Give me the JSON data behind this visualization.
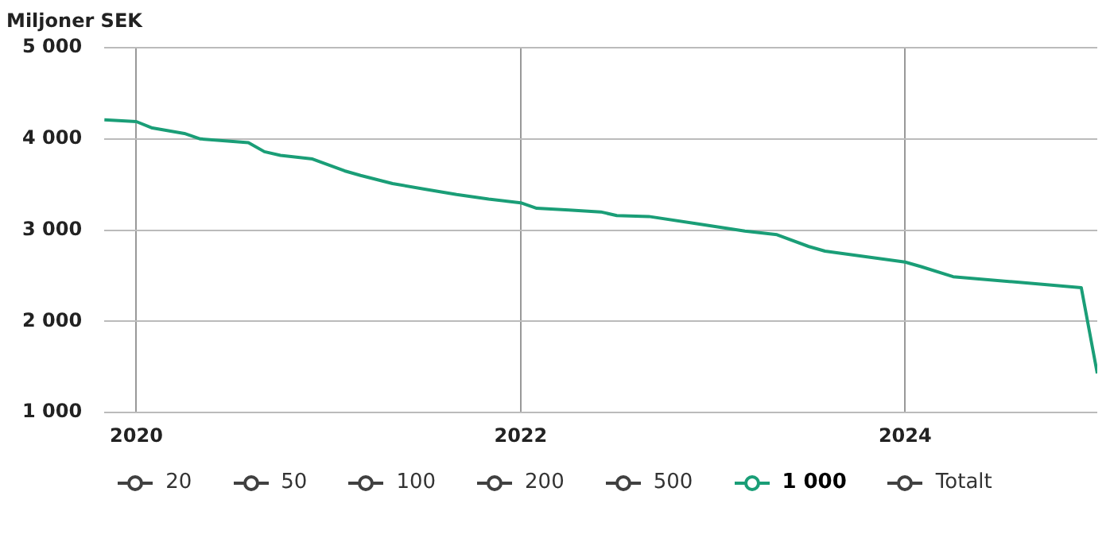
{
  "chart_data": {
    "type": "line",
    "ylabel": "Miljoner SEK",
    "x": [
      "2019-11",
      "2020-01",
      "2020-02",
      "2020-04",
      "2020-05",
      "2020-08",
      "2020-09",
      "2020-10",
      "2020-12",
      "2021-02",
      "2021-03",
      "2021-05",
      "2021-07",
      "2021-09",
      "2021-11",
      "2022-01",
      "2022-02",
      "2022-04",
      "2022-06",
      "2022-07",
      "2022-09",
      "2022-12",
      "2023-03",
      "2023-05",
      "2023-07",
      "2023-08",
      "2024-01",
      "2024-02",
      "2024-04",
      "2024-08",
      "2024-12",
      "2025-01"
    ],
    "series": [
      {
        "name": "20",
        "color": "#404040",
        "values": [
          null,
          null,
          null,
          null,
          null,
          null,
          null,
          null,
          null,
          null,
          null,
          null,
          null,
          null,
          null,
          null,
          null,
          null,
          null,
          null,
          null,
          null,
          null,
          null,
          null,
          null,
          null,
          null,
          null,
          null,
          null,
          null
        ]
      },
      {
        "name": "50",
        "color": "#404040",
        "values": [
          null,
          null,
          null,
          null,
          null,
          null,
          null,
          null,
          null,
          null,
          null,
          null,
          null,
          null,
          null,
          null,
          null,
          null,
          null,
          null,
          null,
          null,
          null,
          null,
          null,
          null,
          null,
          null,
          null,
          null,
          null,
          null
        ]
      },
      {
        "name": "100",
        "color": "#404040",
        "values": [
          null,
          null,
          null,
          null,
          null,
          null,
          null,
          null,
          null,
          null,
          null,
          null,
          null,
          null,
          null,
          null,
          null,
          null,
          null,
          null,
          null,
          null,
          null,
          null,
          null,
          null,
          null,
          null,
          null,
          null,
          null,
          null
        ]
      },
      {
        "name": "200",
        "color": "#404040",
        "values": [
          null,
          null,
          null,
          null,
          null,
          null,
          null,
          null,
          null,
          null,
          null,
          null,
          null,
          null,
          null,
          null,
          null,
          null,
          null,
          null,
          null,
          null,
          null,
          null,
          null,
          null,
          null,
          null,
          null,
          null,
          null,
          null
        ]
      },
      {
        "name": "500",
        "color": "#404040",
        "values": [
          null,
          null,
          null,
          null,
          null,
          null,
          null,
          null,
          null,
          null,
          null,
          null,
          null,
          null,
          null,
          null,
          null,
          null,
          null,
          null,
          null,
          null,
          null,
          null,
          null,
          null,
          null,
          null,
          null,
          null,
          null,
          null
        ]
      },
      {
        "name": "1 000",
        "color": "#1a9e77",
        "values": [
          4210,
          4190,
          4120,
          4060,
          4000,
          3960,
          3860,
          3820,
          3780,
          3650,
          3600,
          3510,
          3450,
          3390,
          3340,
          3300,
          3240,
          3220,
          3200,
          3160,
          3150,
          3070,
          2990,
          2950,
          2820,
          2770,
          2650,
          2600,
          2490,
          2430,
          2370,
          1430
        ]
      },
      {
        "name": "Totalt",
        "color": "#404040",
        "values": [
          null,
          null,
          null,
          null,
          null,
          null,
          null,
          null,
          null,
          null,
          null,
          null,
          null,
          null,
          null,
          null,
          null,
          null,
          null,
          null,
          null,
          null,
          null,
          null,
          null,
          null,
          null,
          null,
          null,
          null,
          null,
          null
        ]
      }
    ],
    "xlim": [
      "2019-11",
      "2025-01"
    ],
    "xticks": [
      "2020",
      "2022",
      "2024"
    ],
    "ylim": [
      1000,
      5000
    ],
    "yticks": [
      {
        "value": 1000,
        "label": "1 000"
      },
      {
        "value": 2000,
        "label": "2 000"
      },
      {
        "value": 3000,
        "label": "3 000"
      },
      {
        "value": 4000,
        "label": "4 000"
      },
      {
        "value": 5000,
        "label": "5 000"
      }
    ],
    "grid": true,
    "legend": "bottom",
    "marker": "none",
    "line_style": "solid"
  }
}
